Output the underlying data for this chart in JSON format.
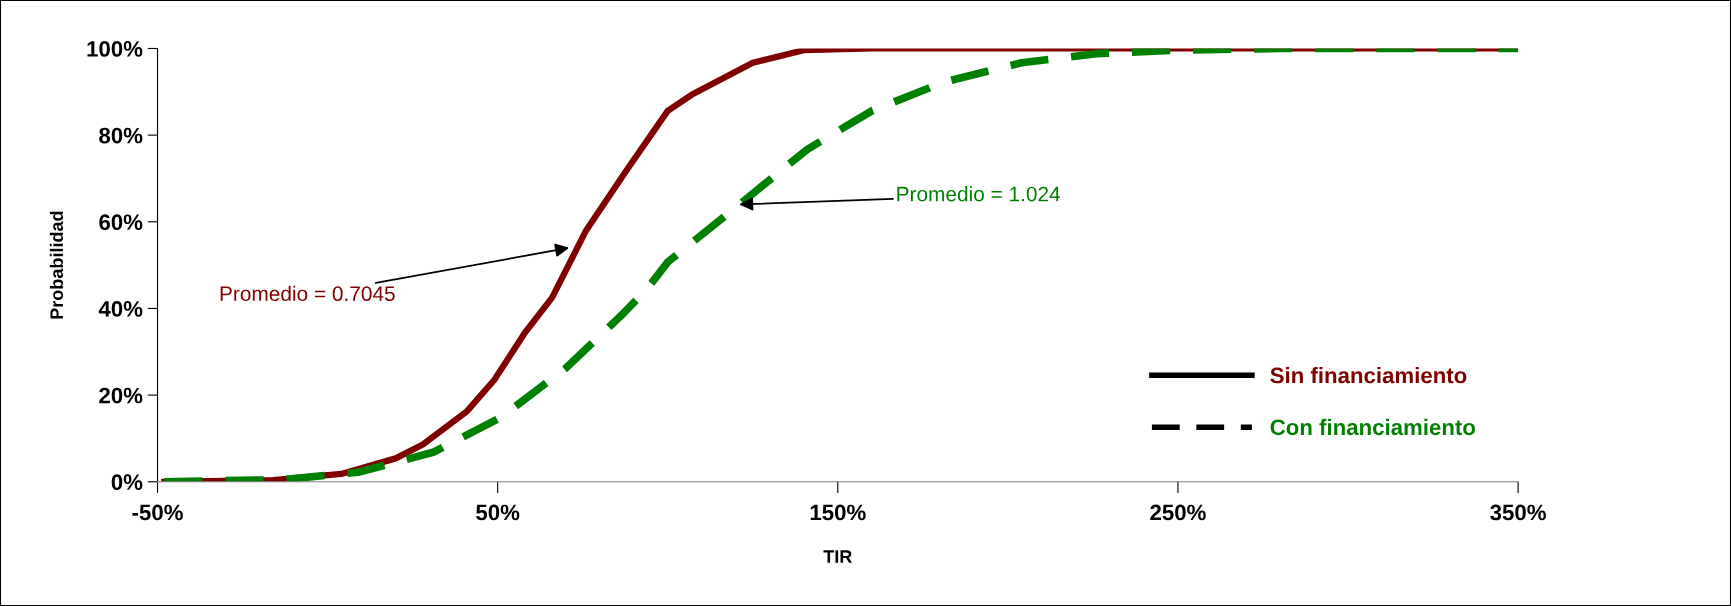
{
  "chart_data": {
    "type": "line",
    "xlabel": "TIR",
    "ylabel": "Probabilidad",
    "xlim": [
      -50,
      350
    ],
    "ylim": [
      0,
      100
    ],
    "xticks": [
      {
        "value": -50,
        "label": "-50%"
      },
      {
        "value": 50,
        "label": "50%"
      },
      {
        "value": 150,
        "label": "150%"
      },
      {
        "value": 250,
        "label": "250%"
      },
      {
        "value": 350,
        "label": "350%"
      }
    ],
    "yticks": [
      {
        "value": 0,
        "label": "0%"
      },
      {
        "value": 20,
        "label": "20%"
      },
      {
        "value": 40,
        "label": "40%"
      },
      {
        "value": 60,
        "label": "60%"
      },
      {
        "value": 80,
        "label": "80%"
      },
      {
        "value": 100,
        "label": "100%"
      }
    ],
    "grid": false,
    "legend": "bottom right",
    "marker": "none",
    "series": [
      {
        "name": "Sin financiamiento",
        "color": "#800000",
        "line_style": "solid",
        "x": [
          -48,
          -16,
          4,
          20,
          28,
          41,
          49,
          58,
          66,
          76,
          88,
          100,
          107,
          125,
          140,
          160,
          200,
          250,
          300,
          350
        ],
        "values": [
          0,
          0.4,
          1.8,
          5.4,
          8.6,
          16.3,
          23.5,
          34.4,
          42.5,
          58,
          72,
          85.6,
          89.3,
          96.7,
          99.6,
          100,
          100,
          100,
          100,
          100
        ]
      },
      {
        "name": "Con financiamiento",
        "color": "#008000",
        "line_style": "dashed",
        "x": [
          -48,
          -13,
          9,
          31,
          51,
          70,
          87,
          94,
          100,
          122,
          141,
          160,
          181,
          204,
          226,
          249,
          280,
          350
        ],
        "values": [
          0,
          0.5,
          2.2,
          6.8,
          14.9,
          26.2,
          38.9,
          44.6,
          50.7,
          64.6,
          76.7,
          85.6,
          92.2,
          96.7,
          98.8,
          99.6,
          100,
          100
        ]
      }
    ],
    "annotations": [
      {
        "text": "Promedio = 0.7045",
        "x": 71,
        "y": 54
      },
      {
        "text": "Promedio = 1.024",
        "x": 121,
        "y": 64
      }
    ]
  }
}
